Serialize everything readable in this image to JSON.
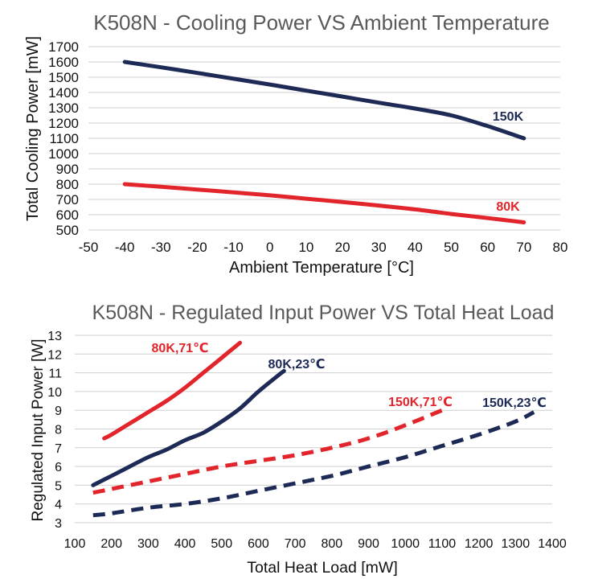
{
  "chart_data": [
    {
      "type": "line",
      "title": "K508N - Cooling Power VS Ambient Temperature",
      "xlabel": "Ambient Temperature [°C]",
      "ylabel": "Total Cooling Power [mW]",
      "xlim": [
        -50,
        80
      ],
      "ylim": [
        500,
        1700
      ],
      "x_ticks": [
        -50,
        -40,
        -30,
        -20,
        -10,
        0,
        10,
        20,
        30,
        40,
        50,
        60,
        70,
        80
      ],
      "y_ticks": [
        500,
        600,
        700,
        800,
        900,
        1000,
        1100,
        1200,
        1300,
        1400,
        1500,
        1600,
        1700
      ],
      "grid": "horizontal",
      "series": [
        {
          "name": "150K",
          "color": "#1e2a56",
          "line_style": "solid",
          "x": [
            -40,
            -30,
            -20,
            -10,
            0,
            10,
            20,
            30,
            40,
            50,
            60,
            70
          ],
          "y": [
            1600,
            1565,
            1528,
            1490,
            1452,
            1412,
            1373,
            1333,
            1295,
            1250,
            1180,
            1100
          ]
        },
        {
          "name": "80K",
          "color": "#e2242b",
          "line_style": "solid",
          "x": [
            -40,
            -30,
            -20,
            -10,
            0,
            10,
            20,
            30,
            40,
            50,
            60,
            70
          ],
          "y": [
            800,
            783,
            765,
            746,
            727,
            705,
            683,
            660,
            635,
            605,
            578,
            550
          ]
        }
      ]
    },
    {
      "type": "line",
      "title": "K508N - Regulated Input Power VS Total Heat Load",
      "xlabel": "Total Heat Load [mW]",
      "ylabel": "Regulated Input Power [W]",
      "xlim": [
        100,
        1400
      ],
      "ylim": [
        3,
        13
      ],
      "x_ticks": [
        100,
        200,
        300,
        400,
        500,
        600,
        700,
        800,
        900,
        1000,
        1100,
        1200,
        1300,
        1400
      ],
      "y_ticks": [
        3,
        4,
        5,
        6,
        7,
        8,
        9,
        10,
        11,
        12,
        13
      ],
      "grid": "horizontal",
      "series": [
        {
          "name": "80K,71℃",
          "color": "#e2242b",
          "line_style": "solid",
          "x": [
            180,
            200,
            250,
            300,
            350,
            400,
            450,
            500,
            550
          ],
          "y": [
            7.5,
            7.7,
            8.3,
            8.9,
            9.5,
            10.2,
            11.0,
            11.8,
            12.6
          ]
        },
        {
          "name": "80K,23℃",
          "color": "#1e2a56",
          "line_style": "solid",
          "x": [
            150,
            200,
            250,
            300,
            350,
            400,
            450,
            500,
            550,
            600,
            650,
            670
          ],
          "y": [
            5.0,
            5.5,
            6.0,
            6.5,
            6.9,
            7.4,
            7.8,
            8.4,
            9.1,
            10.0,
            10.8,
            11.1
          ]
        },
        {
          "name": "150K,71℃",
          "color": "#e2242b",
          "line_style": "dashed",
          "x": [
            150,
            200,
            300,
            400,
            500,
            600,
            700,
            800,
            900,
            1000,
            1100
          ],
          "y": [
            4.6,
            4.8,
            5.2,
            5.6,
            6.0,
            6.3,
            6.6,
            7.0,
            7.5,
            8.2,
            9.0
          ]
        },
        {
          "name": "150K,23℃",
          "color": "#1e2a56",
          "line_style": "dashed",
          "x": [
            150,
            200,
            300,
            400,
            500,
            600,
            700,
            800,
            900,
            1000,
            1100,
            1200,
            1300,
            1350
          ],
          "y": [
            3.4,
            3.5,
            3.8,
            4.0,
            4.3,
            4.7,
            5.1,
            5.5,
            6.0,
            6.5,
            7.1,
            7.7,
            8.4,
            8.9
          ]
        }
      ]
    }
  ]
}
